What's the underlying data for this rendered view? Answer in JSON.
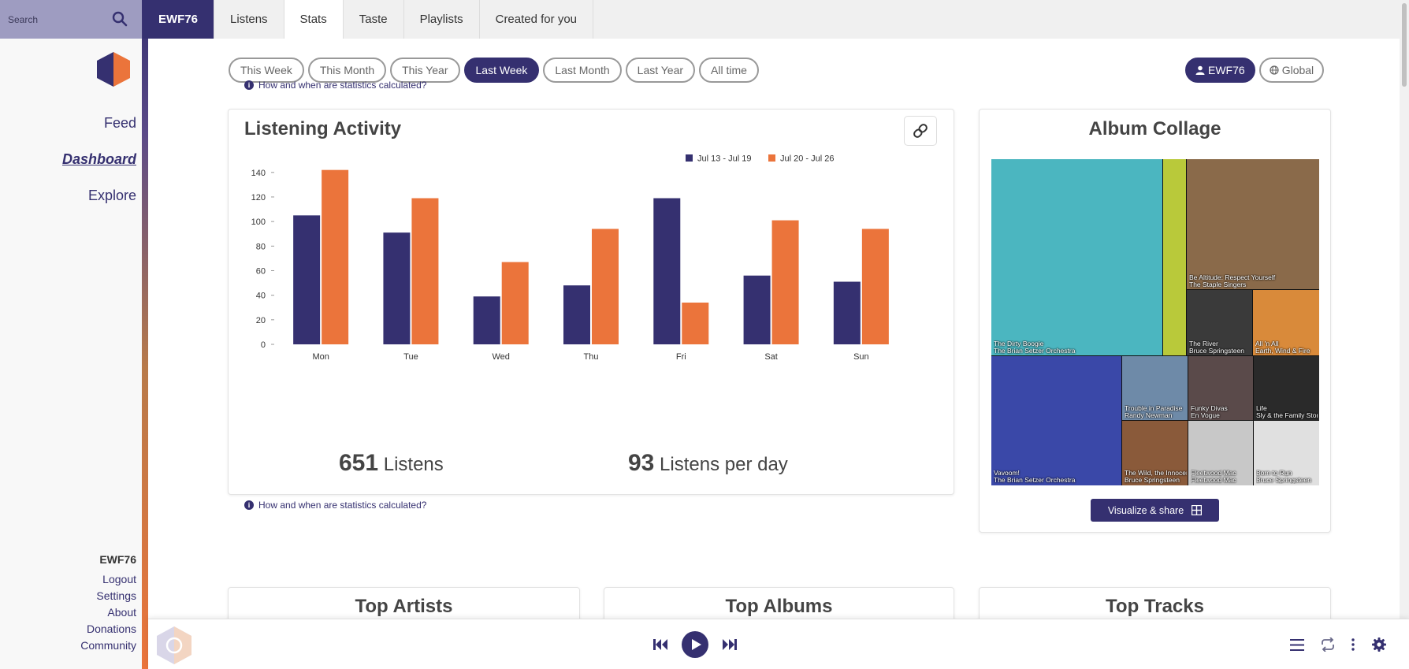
{
  "search": {
    "placeholder": "Search"
  },
  "sidebar": {
    "nav": [
      {
        "label": "Feed",
        "active": false
      },
      {
        "label": "Dashboard",
        "active": true
      },
      {
        "label": "Explore",
        "active": false
      }
    ],
    "username": "EWF76",
    "links": [
      "Logout",
      "Settings",
      "About",
      "Donations",
      "Community"
    ]
  },
  "tabs": [
    "EWF76",
    "Listens",
    "Stats",
    "Taste",
    "Playlists",
    "Created for you"
  ],
  "active_tab": "Stats",
  "ranges": [
    "This Week",
    "This Month",
    "This Year",
    "Last Week",
    "Last Month",
    "Last Year",
    "All time"
  ],
  "active_range": "Last Week",
  "user_toggle": {
    "user": "EWF76",
    "global": "Global"
  },
  "info_link": "How and when are statistics calculated?",
  "activity": {
    "title": "Listening Activity",
    "listens_count": "651",
    "listens_label": "Listens",
    "per_day_count": "93",
    "per_day_label": "Listens per day"
  },
  "chart_data": {
    "type": "bar",
    "categories": [
      "Mon",
      "Tue",
      "Wed",
      "Thu",
      "Fri",
      "Sat",
      "Sun"
    ],
    "series": [
      {
        "name": "Jul 13 - Jul 19",
        "color": "#353070",
        "values": [
          105,
          91,
          39,
          48,
          119,
          56,
          51
        ]
      },
      {
        "name": "Jul 20 - Jul 26",
        "color": "#eb743b",
        "values": [
          142,
          119,
          67,
          94,
          34,
          101,
          94
        ]
      }
    ],
    "yticks": [
      0,
      20,
      40,
      60,
      80,
      100,
      120,
      140
    ],
    "ylim": [
      0,
      145
    ],
    "legend": "top-right"
  },
  "collage": {
    "title": "Album Collage",
    "button_label": "Visualize & share",
    "tiles": [
      {
        "album": "The Dirty Boogie",
        "artist": "The Brian Setzer Orchestra",
        "color": "#4bb6c0"
      },
      {
        "album": "",
        "artist": "",
        "color": "#b9c93a"
      },
      {
        "album": "Be Altitude: Respect Yourself",
        "artist": "The Staple Singers",
        "color": "#8a6a4a"
      },
      {
        "album": "The River",
        "artist": "Bruce Springsteen",
        "color": "#3a3a3a"
      },
      {
        "album": "All 'n All",
        "artist": "Earth, Wind & Fire",
        "color": "#d98a3a"
      },
      {
        "album": "Vavoom!",
        "artist": "The Brian Setzer Orchestra",
        "color": "#3a48a8"
      },
      {
        "album": "Trouble in Paradise",
        "artist": "Randy Newman",
        "color": "#6e8aa8"
      },
      {
        "album": "Funky Divas",
        "artist": "En Vogue",
        "color": "#5a4a4a"
      },
      {
        "album": "Life",
        "artist": "Sly & the Family Stone",
        "color": "#2a2a2a"
      },
      {
        "album": "The Wild, the Innocent",
        "artist": "Bruce Springsteen",
        "color": "#8a5a3a"
      },
      {
        "album": "Fleetwood Mac",
        "artist": "Fleetwood Mac",
        "color": "#c8c8c8"
      },
      {
        "album": "Born to Run",
        "artist": "Bruce Springsteen",
        "color": "#e0e0e0"
      }
    ]
  },
  "bottom_cards": [
    "Top Artists",
    "Top Albums",
    "Top Tracks"
  ],
  "colors": {
    "accent": "#353070",
    "orange": "#eb743b"
  }
}
